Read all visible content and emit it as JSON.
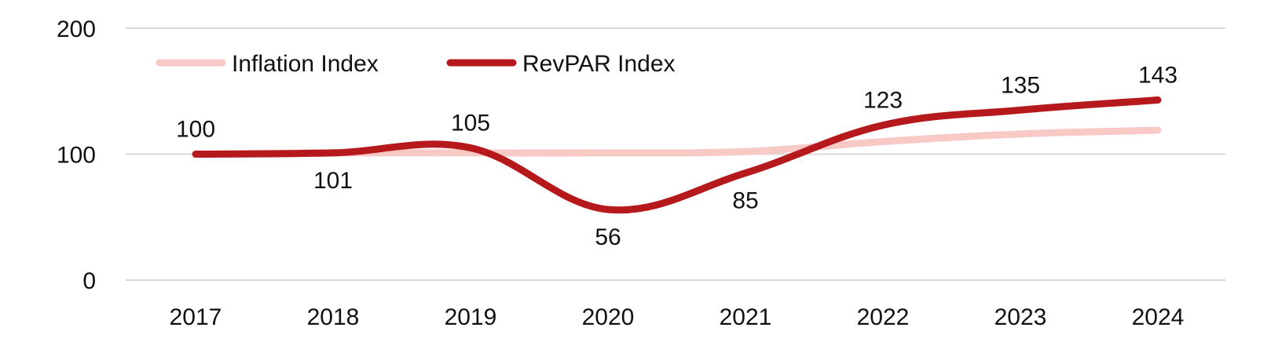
{
  "chart_data": {
    "type": "line",
    "categories": [
      "2017",
      "2018",
      "2019",
      "2020",
      "2021",
      "2022",
      "2023",
      "2024"
    ],
    "series": [
      {
        "name": "Inflation Index",
        "values": [
          100,
          101,
          101,
          101,
          102,
          110,
          116,
          119
        ],
        "color": "#f8c9c5",
        "show_labels": false
      },
      {
        "name": "RevPAR Index",
        "values": [
          100,
          101,
          105,
          56,
          85,
          123,
          135,
          143
        ],
        "color": "#b5191b",
        "show_labels": true
      }
    ],
    "y_ticks": [
      "0",
      "100",
      "200"
    ],
    "ylim": [
      0,
      200
    ],
    "grid": true,
    "legend_position": "top-left",
    "title": "",
    "xlabel": "",
    "ylabel": ""
  }
}
